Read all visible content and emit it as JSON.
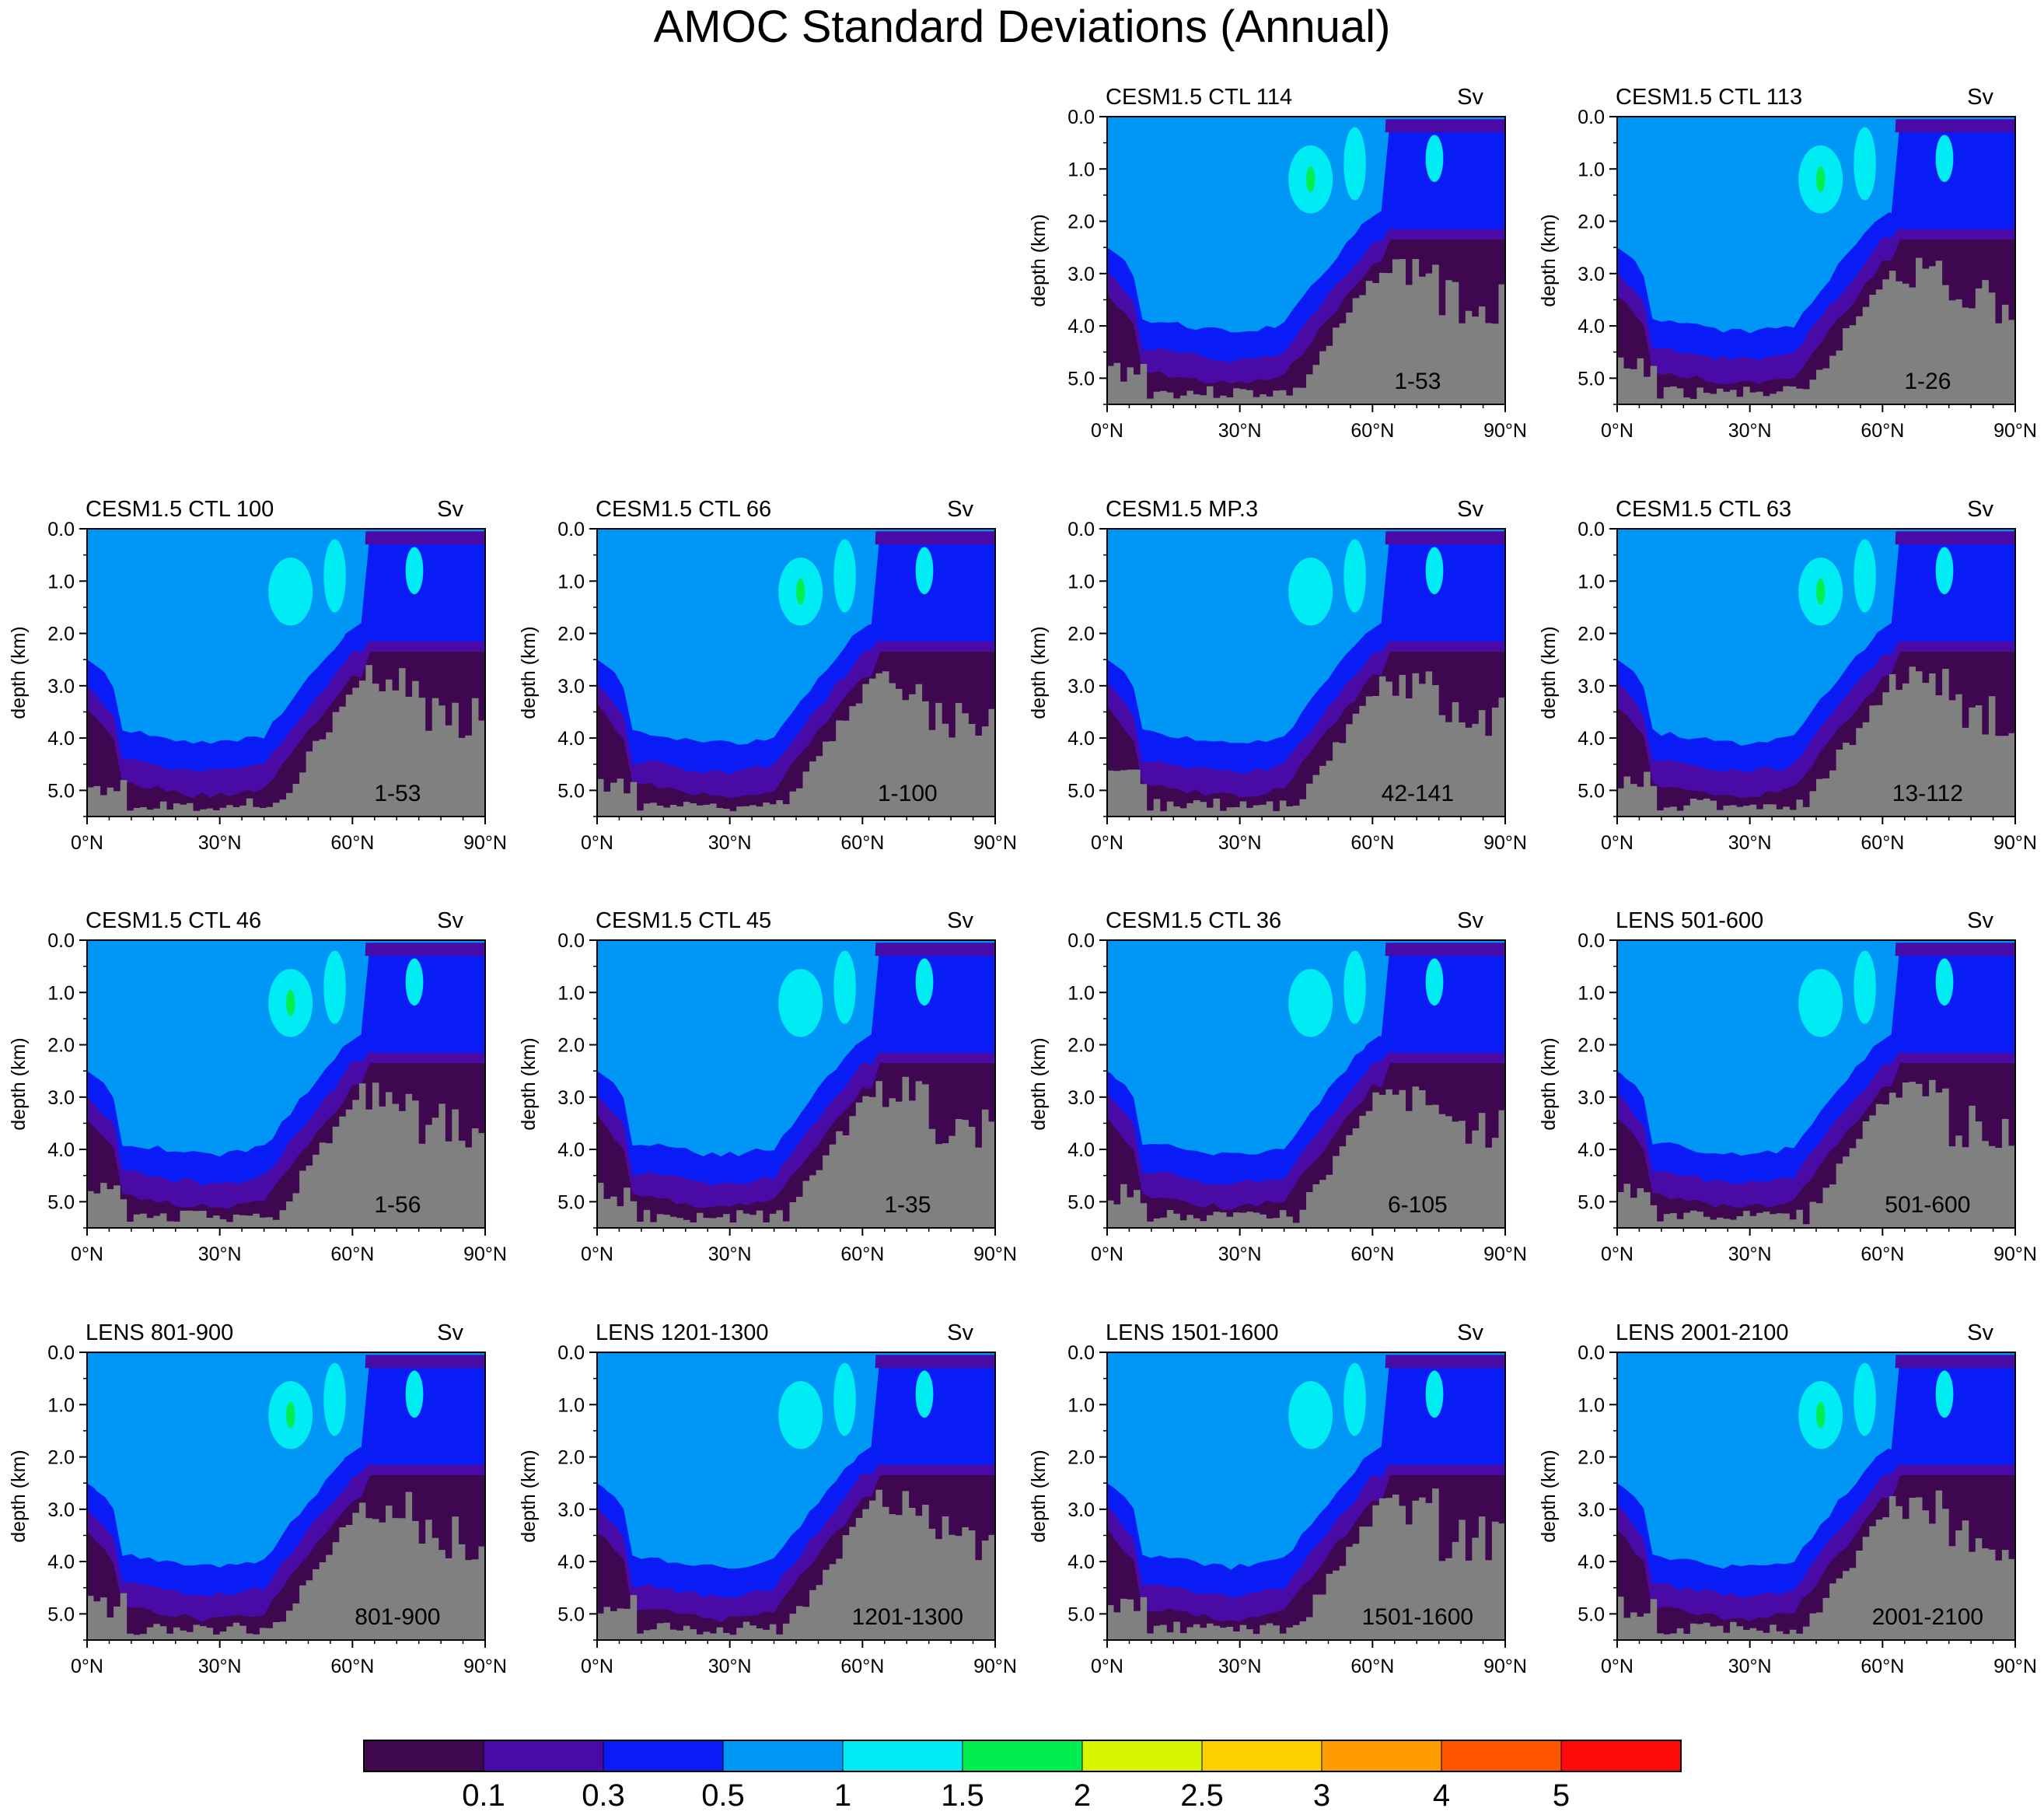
{
  "title": "AMOC Standard Deviations (Annual)",
  "colors": {
    "land": "#808080",
    "levels": [
      "#3e0750",
      "#4a0aa6",
      "#0a1cf5",
      "#0096f5",
      "#00ecf5",
      "#00ee50",
      "#d8f500",
      "#ffd000",
      "#ff9c00",
      "#ff5500",
      "#ff0a0a"
    ]
  },
  "chart_data": [
    {
      "type": "contour",
      "title": "CESM1.5 CTL 114",
      "units": "Sv",
      "period": "1-53",
      "xlabel": "",
      "ylabel": "depth (km)",
      "xticks": [
        "0°N",
        "30°N",
        "60°N",
        "90°N"
      ],
      "yticks": [
        "0.0",
        "1.0",
        "2.0",
        "3.0",
        "4.0",
        "5.0"
      ],
      "xlim": [
        0,
        90
      ],
      "ylim": [
        0,
        5.5
      ],
      "y_reversed": true,
      "row": 0,
      "col": 2,
      "max_level": 2
    },
    {
      "type": "contour",
      "title": "CESM1.5 CTL 113",
      "units": "Sv",
      "period": "1-26",
      "xlabel": "",
      "ylabel": "depth (km)",
      "xticks": [
        "0°N",
        "30°N",
        "60°N",
        "90°N"
      ],
      "yticks": [
        "0.0",
        "1.0",
        "2.0",
        "3.0",
        "4.0",
        "5.0"
      ],
      "xlim": [
        0,
        90
      ],
      "ylim": [
        0,
        5.5
      ],
      "y_reversed": true,
      "row": 0,
      "col": 3,
      "max_level": 2
    },
    {
      "type": "contour",
      "title": "CESM1.5 CTL 100",
      "units": "Sv",
      "period": "1-53",
      "xlabel": "",
      "ylabel": "depth (km)",
      "xticks": [
        "0°N",
        "30°N",
        "60°N",
        "90°N"
      ],
      "yticks": [
        "0.0",
        "1.0",
        "2.0",
        "3.0",
        "4.0",
        "5.0"
      ],
      "xlim": [
        0,
        90
      ],
      "ylim": [
        0,
        5.5
      ],
      "y_reversed": true,
      "row": 1,
      "col": 0,
      "max_level": 1.5
    },
    {
      "type": "contour",
      "title": "CESM1.5 CTL 66",
      "units": "Sv",
      "period": "1-100",
      "xlabel": "",
      "ylabel": "depth (km)",
      "xticks": [
        "0°N",
        "30°N",
        "60°N",
        "90°N"
      ],
      "yticks": [
        "0.0",
        "1.0",
        "2.0",
        "3.0",
        "4.0",
        "5.0"
      ],
      "xlim": [
        0,
        90
      ],
      "ylim": [
        0,
        5.5
      ],
      "y_reversed": true,
      "row": 1,
      "col": 1,
      "max_level": 2
    },
    {
      "type": "contour",
      "title": "CESM1.5 MP.3",
      "units": "Sv",
      "period": "42-141",
      "xlabel": "",
      "ylabel": "depth (km)",
      "xticks": [
        "0°N",
        "30°N",
        "60°N",
        "90°N"
      ],
      "yticks": [
        "0.0",
        "1.0",
        "2.0",
        "3.0",
        "4.0",
        "5.0"
      ],
      "xlim": [
        0,
        90
      ],
      "ylim": [
        0,
        5.5
      ],
      "y_reversed": true,
      "row": 1,
      "col": 2,
      "max_level": 1.5
    },
    {
      "type": "contour",
      "title": "CESM1.5 CTL 63",
      "units": "Sv",
      "period": "13-112",
      "xlabel": "",
      "ylabel": "depth (km)",
      "xticks": [
        "0°N",
        "30°N",
        "60°N",
        "90°N"
      ],
      "yticks": [
        "0.0",
        "1.0",
        "2.0",
        "3.0",
        "4.0",
        "5.0"
      ],
      "xlim": [
        0,
        90
      ],
      "ylim": [
        0,
        5.5
      ],
      "y_reversed": true,
      "row": 1,
      "col": 3,
      "max_level": 2
    },
    {
      "type": "contour",
      "title": "CESM1.5 CTL 46",
      "units": "Sv",
      "period": "1-56",
      "xlabel": "",
      "ylabel": "depth (km)",
      "xticks": [
        "0°N",
        "30°N",
        "60°N",
        "90°N"
      ],
      "yticks": [
        "0.0",
        "1.0",
        "2.0",
        "3.0",
        "4.0",
        "5.0"
      ],
      "xlim": [
        0,
        90
      ],
      "ylim": [
        0,
        5.5
      ],
      "y_reversed": true,
      "row": 2,
      "col": 0,
      "max_level": 2
    },
    {
      "type": "contour",
      "title": "CESM1.5 CTL 45",
      "units": "Sv",
      "period": "1-35",
      "xlabel": "",
      "ylabel": "depth (km)",
      "xticks": [
        "0°N",
        "30°N",
        "60°N",
        "90°N"
      ],
      "yticks": [
        "0.0",
        "1.0",
        "2.0",
        "3.0",
        "4.0",
        "5.0"
      ],
      "xlim": [
        0,
        90
      ],
      "ylim": [
        0,
        5.5
      ],
      "y_reversed": true,
      "row": 2,
      "col": 1,
      "max_level": 1.5
    },
    {
      "type": "contour",
      "title": "CESM1.5 CTL 36",
      "units": "Sv",
      "period": "6-105",
      "xlabel": "",
      "ylabel": "depth (km)",
      "xticks": [
        "0°N",
        "30°N",
        "60°N",
        "90°N"
      ],
      "yticks": [
        "0.0",
        "1.0",
        "2.0",
        "3.0",
        "4.0",
        "5.0"
      ],
      "xlim": [
        0,
        90
      ],
      "ylim": [
        0,
        5.5
      ],
      "y_reversed": true,
      "row": 2,
      "col": 2,
      "max_level": 1.5
    },
    {
      "type": "contour",
      "title": "LENS 501-600",
      "units": "Sv",
      "period": "501-600",
      "xlabel": "",
      "ylabel": "depth (km)",
      "xticks": [
        "0°N",
        "30°N",
        "60°N",
        "90°N"
      ],
      "yticks": [
        "0.0",
        "1.0",
        "2.0",
        "3.0",
        "4.0",
        "5.0"
      ],
      "xlim": [
        0,
        90
      ],
      "ylim": [
        0,
        5.5
      ],
      "y_reversed": true,
      "row": 2,
      "col": 3,
      "max_level": 1.5
    },
    {
      "type": "contour",
      "title": "LENS 801-900",
      "units": "Sv",
      "period": "801-900",
      "xlabel": "",
      "ylabel": "depth (km)",
      "xticks": [
        "0°N",
        "30°N",
        "60°N",
        "90°N"
      ],
      "yticks": [
        "0.0",
        "1.0",
        "2.0",
        "3.0",
        "4.0",
        "5.0"
      ],
      "xlim": [
        0,
        90
      ],
      "ylim": [
        0,
        5.5
      ],
      "y_reversed": true,
      "row": 3,
      "col": 0,
      "max_level": 2
    },
    {
      "type": "contour",
      "title": "LENS 1201-1300",
      "units": "Sv",
      "period": "1201-1300",
      "xlabel": "",
      "ylabel": "depth (km)",
      "xticks": [
        "0°N",
        "30°N",
        "60°N",
        "90°N"
      ],
      "yticks": [
        "0.0",
        "1.0",
        "2.0",
        "3.0",
        "4.0",
        "5.0"
      ],
      "xlim": [
        0,
        90
      ],
      "ylim": [
        0,
        5.5
      ],
      "y_reversed": true,
      "row": 3,
      "col": 1,
      "max_level": 1.5
    },
    {
      "type": "contour",
      "title": "LENS 1501-1600",
      "units": "Sv",
      "period": "1501-1600",
      "xlabel": "",
      "ylabel": "depth (km)",
      "xticks": [
        "0°N",
        "30°N",
        "60°N",
        "90°N"
      ],
      "yticks": [
        "0.0",
        "1.0",
        "2.0",
        "3.0",
        "4.0",
        "5.0"
      ],
      "xlim": [
        0,
        90
      ],
      "ylim": [
        0,
        5.5
      ],
      "y_reversed": true,
      "row": 3,
      "col": 2,
      "max_level": 1.5
    },
    {
      "type": "contour",
      "title": "LENS 2001-2100",
      "units": "Sv",
      "period": "2001-2100",
      "xlabel": "",
      "ylabel": "depth (km)",
      "xticks": [
        "0°N",
        "30°N",
        "60°N",
        "90°N"
      ],
      "yticks": [
        "0.0",
        "1.0",
        "2.0",
        "3.0",
        "4.0",
        "5.0"
      ],
      "xlim": [
        0,
        90
      ],
      "ylim": [
        0,
        5.5
      ],
      "y_reversed": true,
      "row": 3,
      "col": 3,
      "max_level": 2
    },
    {
      "type": "colorbar",
      "levels": [
        "0.1",
        "0.3",
        "0.5",
        "1",
        "1.5",
        "2",
        "2.5",
        "3",
        "4",
        "5"
      ]
    }
  ]
}
